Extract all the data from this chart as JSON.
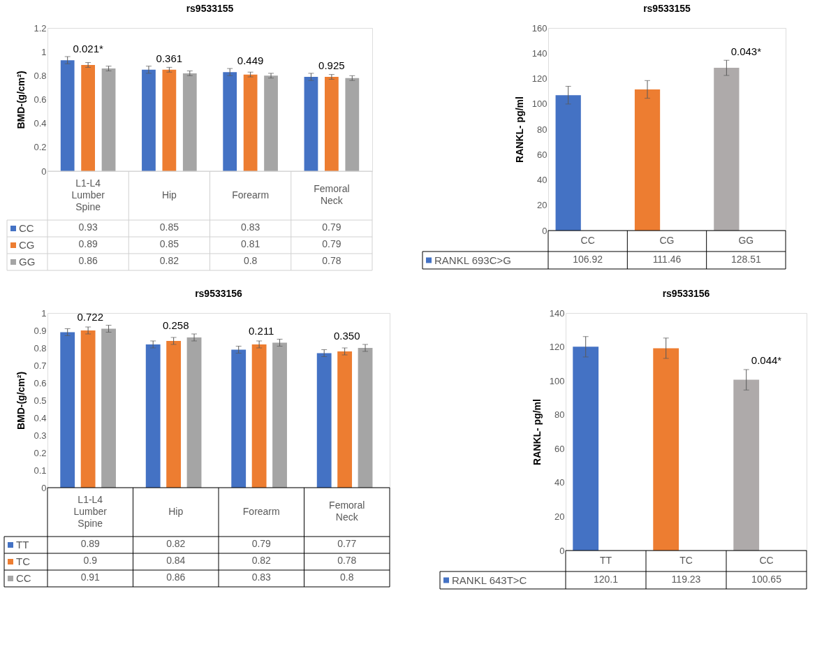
{
  "chart_data": [
    {
      "type": "bar",
      "title": "rs9533155",
      "ylabel": "BMD-(g/cm²)",
      "categories": [
        "L1-L4 Lumber Spine",
        "Hip",
        "Forearm",
        "Femoral Neck"
      ],
      "series": [
        {
          "name": "CC",
          "color": "#4472c4",
          "values": [
            0.93,
            0.85,
            0.83,
            0.79
          ],
          "errors": [
            0.03,
            0.03,
            0.03,
            0.03
          ]
        },
        {
          "name": "CG",
          "color": "#ed7d31",
          "values": [
            0.89,
            0.85,
            0.81,
            0.79
          ],
          "errors": [
            0.02,
            0.02,
            0.02,
            0.02
          ]
        },
        {
          "name": "GG",
          "color": "#a5a5a5",
          "values": [
            0.86,
            0.82,
            0.8,
            0.78
          ],
          "errors": [
            0.02,
            0.02,
            0.02,
            0.02
          ]
        }
      ],
      "ylim": [
        0,
        1.2
      ],
      "yticks": [
        0,
        0.2,
        0.4,
        0.6,
        0.8,
        1,
        1.2
      ],
      "data_labels": true,
      "legend": "bottom left",
      "annotations": [
        "0.021*",
        "0.361",
        "0.449",
        "0.925"
      ]
    },
    {
      "type": "bar",
      "title": "rs9533155",
      "ylabel": "RANKL- pg/ml",
      "categories": [
        "CC",
        "CG",
        "GG"
      ],
      "series": [
        {
          "name": "RANKL 693C>G",
          "colors": [
            "#4472c4",
            "#ed7d31",
            "#aeaaaa"
          ],
          "values": [
            106.92,
            111.46,
            128.51
          ],
          "errors": [
            7,
            7,
            6
          ]
        }
      ],
      "ylim": [
        0,
        160
      ],
      "yticks": [
        0,
        20,
        40,
        60,
        80,
        100,
        120,
        140,
        160
      ],
      "data_labels": true,
      "legend": "bottom left",
      "annotations": [
        "0.043*"
      ]
    },
    {
      "type": "bar",
      "title": "rs9533156",
      "ylabel": "BMD-(g/cm²)",
      "categories": [
        "L1-L4 Lumber Spine",
        "Hip",
        "Forearm",
        "Femoral Neck"
      ],
      "series": [
        {
          "name": "TT",
          "color": "#4472c4",
          "values": [
            0.89,
            0.82,
            0.79,
            0.77
          ],
          "errors": [
            0.02,
            0.02,
            0.02,
            0.02
          ]
        },
        {
          "name": "TC",
          "color": "#ed7d31",
          "values": [
            0.9,
            0.84,
            0.82,
            0.78
          ],
          "errors": [
            0.02,
            0.02,
            0.02,
            0.02
          ]
        },
        {
          "name": "CC",
          "color": "#a5a5a5",
          "values": [
            0.91,
            0.86,
            0.83,
            0.8
          ],
          "errors": [
            0.02,
            0.02,
            0.02,
            0.02
          ]
        }
      ],
      "ylim": [
        0,
        1
      ],
      "yticks": [
        0,
        0.1,
        0.2,
        0.3,
        0.4,
        0.5,
        0.6,
        0.7,
        0.8,
        0.9,
        1
      ],
      "data_labels": true,
      "legend": "bottom left",
      "annotations": [
        "0.722",
        "0.258",
        "0.211",
        "0.350"
      ]
    },
    {
      "type": "bar",
      "title": "rs9533156",
      "ylabel": "RANKL- pg/ml",
      "categories": [
        "TT",
        "TC",
        "CC"
      ],
      "series": [
        {
          "name": "RANKL 643T>C",
          "colors": [
            "#4472c4",
            "#ed7d31",
            "#aeaaaa"
          ],
          "values": [
            120.1,
            119.23,
            100.65
          ],
          "errors": [
            6,
            6,
            6
          ]
        }
      ],
      "ylim": [
        0,
        140
      ],
      "yticks": [
        0,
        20,
        40,
        60,
        80,
        100,
        120,
        140
      ],
      "data_labels": true,
      "legend": "bottom left",
      "annotations": [
        "0.044*"
      ]
    }
  ]
}
